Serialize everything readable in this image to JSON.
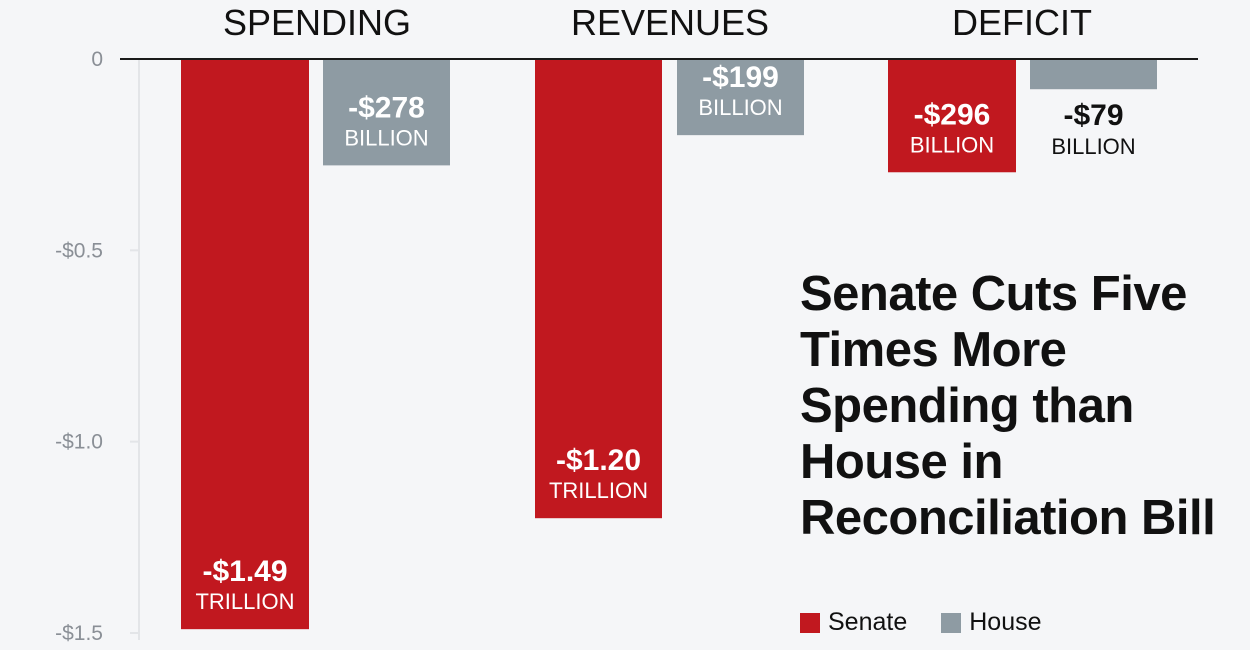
{
  "chart_data": {
    "type": "bar",
    "title": "Senate Cuts Five Times More Spending than House in Reconciliation Bill",
    "categories": [
      "SPENDING",
      "REVENUES",
      "DEFICIT"
    ],
    "ylabel": "",
    "xlabel": "",
    "ylim": [
      -1.5,
      0
    ],
    "yticks": [
      {
        "value": 0,
        "label": "0"
      },
      {
        "value": -0.5,
        "label": "-$0.5"
      },
      {
        "value": -1.0,
        "label": "-$1.0"
      },
      {
        "value": -1.5,
        "label": "-$1.5"
      }
    ],
    "grid": false,
    "legend_position": "bottom-right",
    "series": [
      {
        "name": "Senate",
        "color": "#c1181f",
        "values": [
          -1.49,
          -1.2,
          -0.296
        ],
        "labels": [
          {
            "amount": "-$1.49",
            "unit": "TRILLION"
          },
          {
            "amount": "-$1.20",
            "unit": "TRILLION"
          },
          {
            "amount": "-$296",
            "unit": "BILLION"
          }
        ]
      },
      {
        "name": "House",
        "color": "#8e9ba3",
        "values": [
          -0.278,
          -0.199,
          -0.079
        ],
        "labels": [
          {
            "amount": "-$278",
            "unit": "BILLION"
          },
          {
            "amount": "-$199",
            "unit": "BILLION"
          },
          {
            "amount": "-$79",
            "unit": "BILLION"
          }
        ]
      }
    ]
  }
}
